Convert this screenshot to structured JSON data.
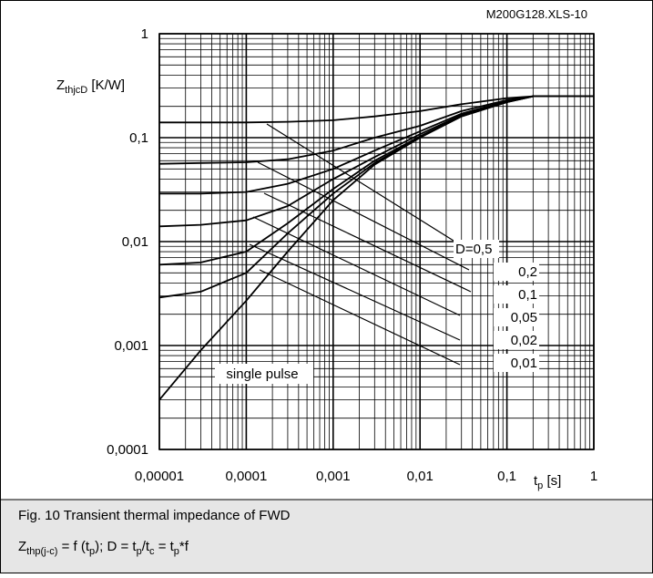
{
  "chart_data": {
    "type": "line",
    "source_id": "M200G128.XLS-10",
    "ylabel": [
      "Z",
      "thjcD",
      " [K/W]"
    ],
    "xlabel": [
      "t",
      "p",
      " [s]"
    ],
    "log_x": true,
    "log_y": true,
    "grid": true,
    "color": "#000000",
    "x": [
      1e-05,
      3e-05,
      0.0001,
      0.0003,
      0.001,
      0.003,
      0.01,
      0.03,
      0.1,
      0.2,
      1
    ],
    "series": [
      {
        "name": "single pulse",
        "color": "#000000",
        "values": [
          0.0003,
          0.0009,
          0.0027,
          0.008,
          0.025,
          0.055,
          0.1,
          0.16,
          0.22,
          0.25,
          0.25
        ]
      },
      {
        "name": "D=0,5",
        "color": "#000000",
        "values": [
          0.14,
          0.14,
          0.14,
          0.142,
          0.147,
          0.16,
          0.18,
          0.21,
          0.24,
          0.25,
          0.25
        ]
      },
      {
        "name": "0,2",
        "color": "#000000",
        "values": [
          0.056,
          0.057,
          0.058,
          0.062,
          0.075,
          0.1,
          0.13,
          0.18,
          0.23,
          0.25,
          0.25
        ]
      },
      {
        "name": "0,1",
        "color": "#000000",
        "values": [
          0.029,
          0.029,
          0.03,
          0.036,
          0.05,
          0.075,
          0.115,
          0.17,
          0.225,
          0.25,
          0.25
        ]
      },
      {
        "name": "0,05",
        "color": "#000000",
        "values": [
          0.014,
          0.0145,
          0.016,
          0.022,
          0.04,
          0.065,
          0.108,
          0.165,
          0.22,
          0.25,
          0.25
        ]
      },
      {
        "name": "0,02",
        "color": "#000000",
        "values": [
          0.006,
          0.0063,
          0.008,
          0.015,
          0.032,
          0.06,
          0.103,
          0.162,
          0.22,
          0.25,
          0.25
        ]
      },
      {
        "name": "0,01",
        "color": "#000000",
        "values": [
          0.0029,
          0.0033,
          0.005,
          0.012,
          0.029,
          0.057,
          0.101,
          0.16,
          0.22,
          0.25,
          0.25
        ]
      }
    ],
    "xlim": [
      1e-05,
      1
    ],
    "ylim": [
      0.0001,
      1
    ],
    "xticks": [
      {
        "value": 1e-05,
        "label": "0,00001"
      },
      {
        "value": 0.0001,
        "label": "0,0001"
      },
      {
        "value": 0.001,
        "label": "0,001"
      },
      {
        "value": 0.01,
        "label": "0,01"
      },
      {
        "value": 0.1,
        "label": "0,1"
      },
      1
    ],
    "yticks": [
      {
        "value": 0.0001,
        "label": "0,0001"
      },
      {
        "value": 0.001,
        "label": "0,001"
      },
      {
        "value": 0.01,
        "label": "0,01"
      },
      {
        "value": 0.1,
        "label": "0,1"
      },
      1
    ]
  },
  "caption": {
    "title": "Fig. 10 Transient thermal impedance of FWD",
    "formula": [
      "Z",
      "thp(j-c)",
      " = f (t",
      "p",
      "); D = t",
      "p",
      "/t",
      "c",
      " = t",
      "p",
      "*f"
    ]
  }
}
